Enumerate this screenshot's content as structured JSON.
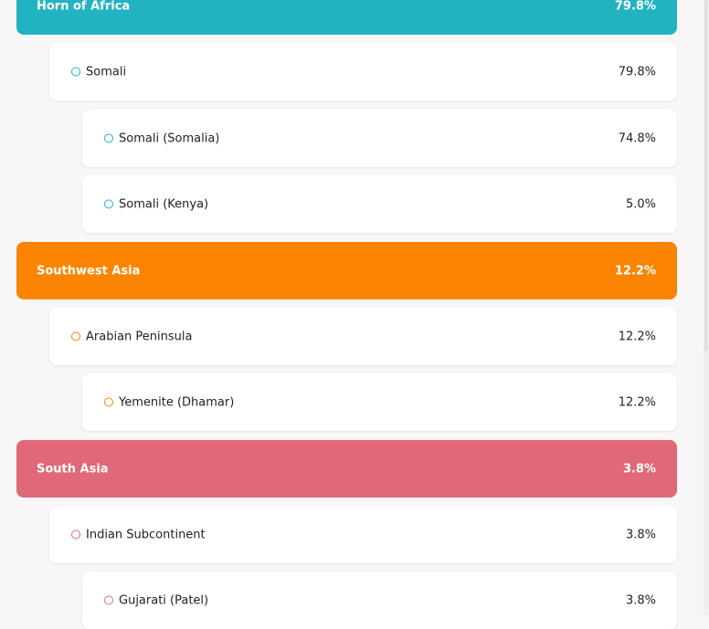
{
  "colors": {
    "teal": "#22b3c1",
    "orange": "#fb8503",
    "pink": "#e06879"
  },
  "groups": [
    {
      "region": "Horn of Africa",
      "pct": "79.8%",
      "subregion": {
        "label": "Somali",
        "pct": "79.8%"
      },
      "items": [
        {
          "label": "Somali (Somalia)",
          "pct": "74.8%"
        },
        {
          "label": "Somali (Kenya)",
          "pct": "5.0%"
        }
      ]
    },
    {
      "region": "Southwest Asia",
      "pct": "12.2%",
      "subregion": {
        "label": "Arabian Peninsula",
        "pct": "12.2%"
      },
      "items": [
        {
          "label": "Yemenite (Dhamar)",
          "pct": "12.2%"
        }
      ]
    },
    {
      "region": "South Asia",
      "pct": "3.8%",
      "subregion": {
        "label": "Indian Subcontinent",
        "pct": "3.8%"
      },
      "items": [
        {
          "label": "Gujarati (Patel)",
          "pct": "3.8%"
        }
      ]
    }
  ]
}
